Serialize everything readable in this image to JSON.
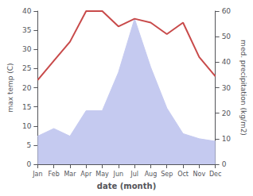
{
  "chart_data": {
    "type": "line",
    "xlabel": "date (month)",
    "ylabel": "max temp (C)",
    "y2label": "med. precipitation (kg/m2)",
    "categories": [
      "Jan",
      "Feb",
      "Mar",
      "Apr",
      "May",
      "Jun",
      "Jul",
      "Aug",
      "Sep",
      "Oct",
      "Nov",
      "Dec"
    ],
    "series": [
      {
        "type": "line",
        "color": "#c84a4a",
        "values": [
          22,
          27,
          32,
          40,
          40,
          36,
          38,
          37,
          34,
          37,
          28,
          23
        ]
      },
      {
        "type": "area",
        "axis": "y2",
        "color": "#c5caf0",
        "values": [
          11,
          14,
          11,
          21,
          21,
          36,
          57,
          38,
          22,
          12,
          10,
          9
        ]
      }
    ],
    "ylim": [
      0,
      40
    ],
    "yticks": [
      0,
      5,
      10,
      15,
      20,
      25,
      30,
      35,
      40
    ],
    "y2lim": [
      0,
      60
    ],
    "y2ticks": [
      0,
      10,
      20,
      30,
      40,
      50,
      60
    ],
    "grid": false
  }
}
